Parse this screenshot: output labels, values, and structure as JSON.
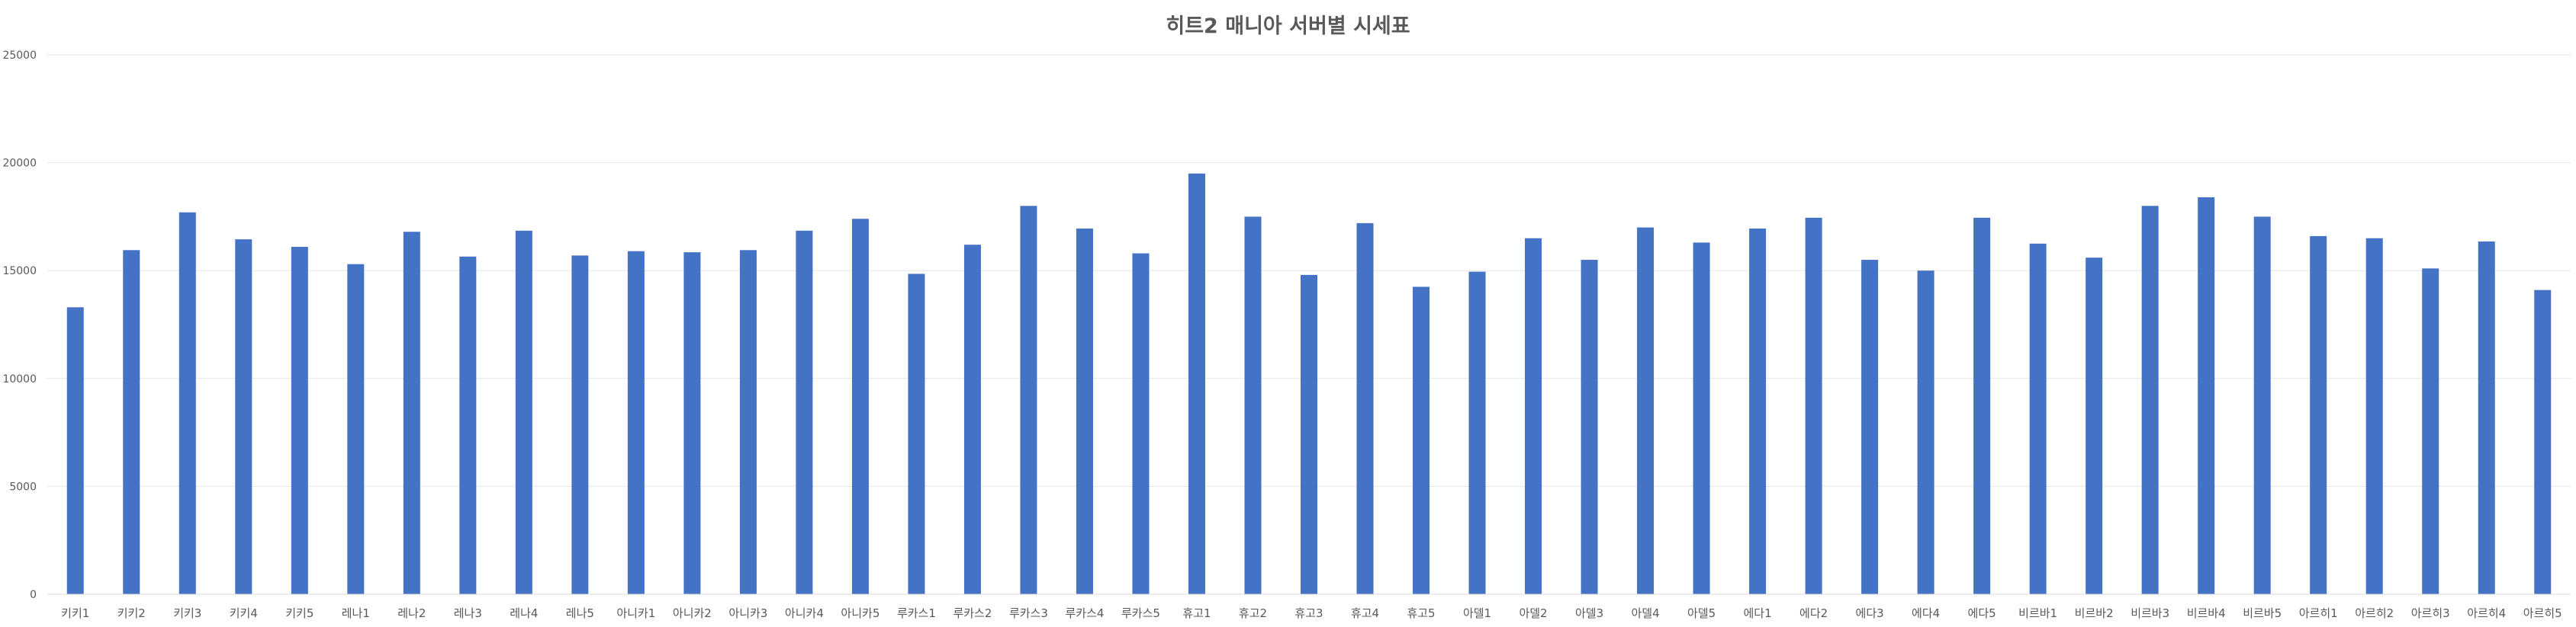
{
  "chart_data": {
    "type": "bar",
    "title": "히트2 매니아 서버별 시세표",
    "xlabel": "",
    "ylabel": "",
    "ylim": [
      0,
      25000
    ],
    "yticks": [
      0,
      5000,
      10000,
      15000,
      20000,
      25000
    ],
    "grid": true,
    "legend": "none",
    "bar_color": "#4472C4",
    "categories": [
      "키키1",
      "키키2",
      "키키3",
      "키키4",
      "키키5",
      "레나1",
      "레나2",
      "레나3",
      "레나4",
      "레나5",
      "아니카1",
      "아니카2",
      "아니카3",
      "아니카4",
      "아니카5",
      "루카스1",
      "루카스2",
      "루카스3",
      "루카스4",
      "루카스5",
      "휴고1",
      "휴고2",
      "휴고3",
      "휴고4",
      "휴고5",
      "아델1",
      "아델2",
      "아델3",
      "아델4",
      "아델5",
      "에다1",
      "에다2",
      "에다3",
      "에다4",
      "에다5",
      "비르바1",
      "비르바2",
      "비르바3",
      "비르바4",
      "비르바5",
      "아르히1",
      "아르히2",
      "아르히3",
      "아르히4",
      "아르히5"
    ],
    "values": [
      13300,
      15950,
      17700,
      16450,
      16100,
      15300,
      16800,
      15650,
      16850,
      15700,
      15900,
      15850,
      15950,
      16850,
      17400,
      14850,
      16200,
      18000,
      16950,
      15800,
      19500,
      17500,
      14800,
      17200,
      14250,
      14950,
      16500,
      15500,
      17000,
      16300,
      16950,
      17450,
      15500,
      15000,
      17450,
      16250,
      15600,
      18000,
      18400,
      17500,
      16600,
      16500,
      15100,
      16350,
      14100
    ]
  }
}
